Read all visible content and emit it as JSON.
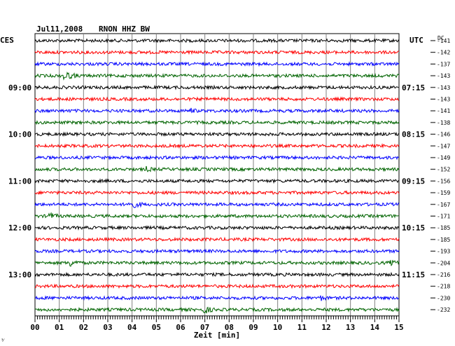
{
  "header": {
    "date": "Jul11,2008",
    "station": "RNON HHZ BW",
    "left_tz": "CES",
    "right_tz": "UTC",
    "dc_label": "DC"
  },
  "chart_data": {
    "type": "line",
    "title": "Jul11,2008   RNON HHZ BW",
    "xlabel": "Zeit [min]",
    "xlim": [
      0,
      15
    ],
    "x_ticks": [
      "00",
      "01",
      "02",
      "03",
      "04",
      "05",
      "06",
      "07",
      "08",
      "09",
      "10",
      "11",
      "12",
      "13",
      "14",
      "15"
    ],
    "trace_colors": [
      "#000000",
      "#ff0000",
      "#0000ff",
      "#006400"
    ],
    "rows": 24,
    "left_hour_labels": [
      {
        "row": 4,
        "text": "09:00"
      },
      {
        "row": 8,
        "text": "10:00"
      },
      {
        "row": 12,
        "text": "11:00"
      },
      {
        "row": 16,
        "text": "12:00"
      },
      {
        "row": 20,
        "text": "13:00"
      }
    ],
    "right_hour_labels": [
      {
        "row": 4,
        "text": "07:15"
      },
      {
        "row": 8,
        "text": "08:15"
      },
      {
        "row": 12,
        "text": "09:15"
      },
      {
        "row": 16,
        "text": "10:15"
      },
      {
        "row": 20,
        "text": "11:15"
      }
    ],
    "dc_offsets": [
      -141,
      -142,
      -137,
      -143,
      -143,
      -143,
      -141,
      -138,
      -146,
      -147,
      -149,
      -152,
      -156,
      -159,
      -167,
      -171,
      -185,
      -185,
      -193,
      -204,
      -216,
      -218,
      -230,
      -232
    ],
    "events": [
      {
        "row": 3,
        "minute": 1.2,
        "amp": 1.0,
        "dur": 0.6
      },
      {
        "row": 14,
        "minute": 3.9,
        "amp": 1.0,
        "dur": 0.6
      },
      {
        "row": 15,
        "minute": 0.6,
        "amp": 0.7,
        "dur": 0.4
      },
      {
        "row": 19,
        "minute": 1.4,
        "amp": 0.9,
        "dur": 0.5
      },
      {
        "row": 19,
        "minute": 14.7,
        "amp": 0.5,
        "dur": 0.3
      },
      {
        "row": 23,
        "minute": 7.0,
        "amp": 0.8,
        "dur": 0.4
      },
      {
        "row": 6,
        "minute": 6.4,
        "amp": 0.5,
        "dur": 0.3
      },
      {
        "row": 11,
        "minute": 4.6,
        "amp": 0.5,
        "dur": 0.3
      },
      {
        "row": 22,
        "minute": 11.8,
        "amp": 0.4,
        "dur": 0.3
      }
    ],
    "grid": true,
    "corner_mark": "³⁄"
  }
}
